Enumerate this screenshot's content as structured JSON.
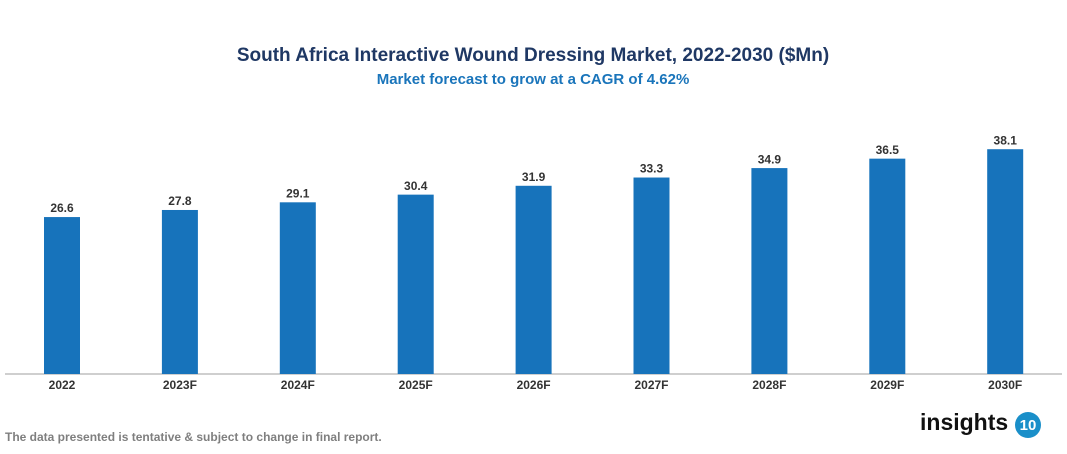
{
  "chart_data": {
    "type": "bar",
    "title": "South Africa Interactive Wound Dressing Market, 2022-2030 ($Mn)",
    "subtitle": "Market forecast to grow at a CAGR of 4.62%",
    "categories": [
      "2022",
      "2023F",
      "2024F",
      "2025F",
      "2026F",
      "2027F",
      "2028F",
      "2029F",
      "2030F"
    ],
    "values": [
      26.6,
      27.8,
      29.1,
      30.4,
      31.9,
      33.3,
      34.9,
      36.5,
      38.1
    ],
    "color": "#1773bb"
  },
  "footnote": "The data presented is tentative & subject to change in final report.",
  "logo": {
    "text": "insights",
    "badge": "10"
  }
}
